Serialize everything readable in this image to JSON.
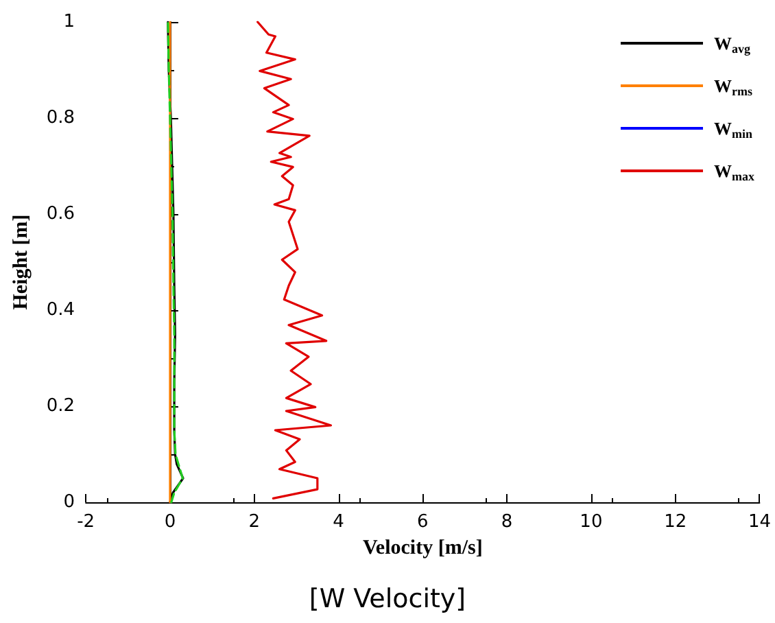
{
  "chart_data": {
    "type": "line",
    "xlabel": "Velocity [m/s]",
    "ylabel": "Height [m]",
    "annotations": [
      "[W Velocity]"
    ],
    "xlim": [
      -2,
      14
    ],
    "xticks": [
      -2,
      0,
      2,
      4,
      6,
      8,
      10,
      12,
      14
    ],
    "ylim": [
      0,
      1
    ],
    "yticks": [
      0,
      0.2,
      0.4,
      0.6,
      0.8,
      1
    ],
    "grid": false,
    "legend": "top right",
    "marker": "none",
    "series": [
      {
        "name": "W$_{avg}$",
        "color": "#000000",
        "x": [
          0,
          0.07,
          0.31,
          0.16,
          0.12,
          0.1,
          0.1,
          0.12,
          0.1,
          0.08,
          0.05,
          0.02,
          -0.03,
          -0.05
        ],
        "values": [
          0,
          0.02,
          0.05,
          0.079,
          0.1,
          0.15,
          0.25,
          0.35,
          0.45,
          0.6,
          0.7,
          0.8,
          0.9,
          1
        ]
      },
      {
        "name": "W$_{rms}$",
        "color": "#ff8000",
        "x": [
          0,
          0
        ],
        "values": [
          0,
          1
        ]
      },
      {
        "name": "W$_{min}$",
        "color": "#0000ff"
      },
      {
        "name": "W$_{max}$",
        "color": "#e00000",
        "x": [
          2.45,
          3.5,
          3.5,
          2.6,
          2.97,
          2.76,
          3.08,
          2.5,
          3.82,
          2.76,
          3.45,
          2.76,
          3.34,
          2.87,
          3.29,
          2.76,
          3.71,
          2.82,
          3.61,
          2.71,
          2.82,
          2.97,
          2.66,
          3.03,
          2.82,
          2.97,
          2.48,
          2.82,
          2.92,
          2.66,
          2.92,
          2.4,
          2.87,
          2.6,
          3.31,
          2.31,
          2.92,
          2.45,
          2.82,
          2.24,
          2.87,
          2.13,
          2.97,
          2.29,
          2.5,
          2.34,
          2.08
        ],
        "values": [
          0.008,
          0.027,
          0.05,
          0.069,
          0.084,
          0.108,
          0.131,
          0.15,
          0.16,
          0.19,
          0.198,
          0.217,
          0.246,
          0.274,
          0.303,
          0.331,
          0.336,
          0.369,
          0.389,
          0.422,
          0.451,
          0.479,
          0.505,
          0.527,
          0.584,
          0.608,
          0.62,
          0.631,
          0.66,
          0.679,
          0.698,
          0.709,
          0.719,
          0.727,
          0.763,
          0.772,
          0.798,
          0.812,
          0.827,
          0.862,
          0.881,
          0.898,
          0.922,
          0.936,
          0.97,
          0.974,
          1
        ]
      },
      {
        "color": "#22cc22",
        "line_style": "dashed",
        "x": [
          0.03,
          0.1,
          0.3,
          0.2,
          0.13,
          0.1,
          0.1,
          0.1,
          0.08,
          0.06,
          0.03,
          0,
          -0.03,
          -0.05
        ],
        "values": [
          0,
          0.02,
          0.05,
          0.079,
          0.1,
          0.15,
          0.25,
          0.35,
          0.45,
          0.6,
          0.7,
          0.8,
          0.9,
          1
        ]
      }
    ]
  }
}
